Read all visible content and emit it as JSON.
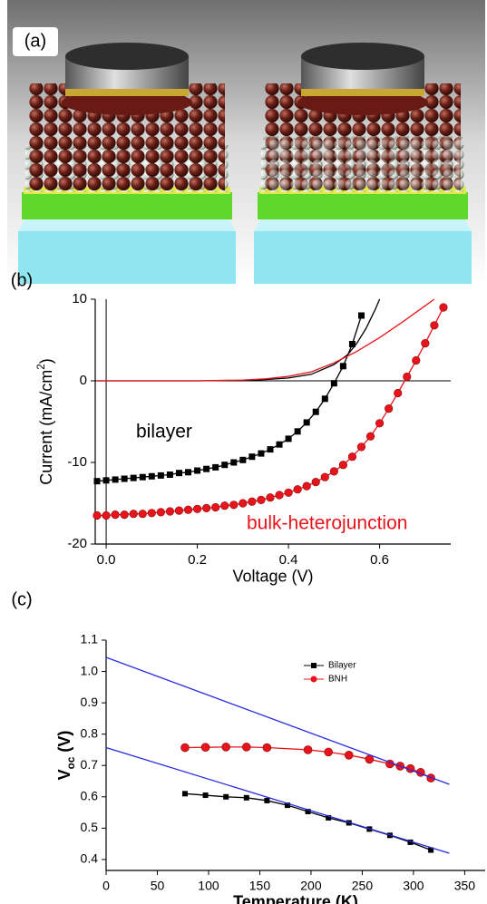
{
  "panel_labels": [
    "(a)",
    "(b)",
    "(c)"
  ],
  "chart_data": [
    {
      "type": "line",
      "x_label": "Voltage (V)",
      "y_label": [
        "Current (mA/cm",
        "2",
        ")"
      ],
      "xlim": [
        -0.024,
        0.756
      ],
      "ylim": [
        -20,
        10
      ],
      "xticks": [
        {
          "value": 0,
          "label": "0.0"
        },
        0.2,
        0.4,
        0.6
      ],
      "yticks": [
        -20,
        -10,
        0,
        10
      ],
      "annotations": [
        {
          "text": "bilayer",
          "color": "#000000"
        },
        {
          "text": "bulk-heterojunction",
          "color": "#e8141c"
        }
      ],
      "series": [
        {
          "color": "#000000",
          "marker": "square",
          "x": [
            -0.02,
            0,
            0.02,
            0.04,
            0.06,
            0.08,
            0.1,
            0.12,
            0.14,
            0.16,
            0.18,
            0.2,
            0.22,
            0.24,
            0.26,
            0.28,
            0.3,
            0.32,
            0.34,
            0.36,
            0.38,
            0.4,
            0.42,
            0.44,
            0.46,
            0.48,
            0.5,
            0.52,
            0.54,
            0.56
          ],
          "values": [
            -12.3,
            -12.2,
            -12.1,
            -12.0,
            -11.9,
            -11.8,
            -11.7,
            -11.6,
            -11.5,
            -11.3,
            -11.2,
            -11.0,
            -10.8,
            -10.6,
            -10.3,
            -10.0,
            -9.7,
            -9.3,
            -8.9,
            -8.4,
            -7.8,
            -7.1,
            -6.2,
            -5.1,
            -3.8,
            -2.2,
            -0.3,
            1.8,
            4.5,
            8.0
          ]
        },
        {
          "color": "#e8141c",
          "marker": "circle",
          "x": [
            -0.02,
            0,
            0.02,
            0.04,
            0.06,
            0.08,
            0.1,
            0.12,
            0.14,
            0.16,
            0.18,
            0.2,
            0.22,
            0.24,
            0.26,
            0.28,
            0.3,
            0.32,
            0.34,
            0.36,
            0.38,
            0.4,
            0.42,
            0.44,
            0.46,
            0.48,
            0.5,
            0.52,
            0.54,
            0.56,
            0.58,
            0.6,
            0.62,
            0.64,
            0.66,
            0.68,
            0.7,
            0.72,
            0.74
          ],
          "values": [
            -16.5,
            -16.5,
            -16.4,
            -16.4,
            -16.3,
            -16.3,
            -16.2,
            -16.1,
            -16.0,
            -15.9,
            -15.8,
            -15.7,
            -15.6,
            -15.5,
            -15.3,
            -15.2,
            -15.0,
            -14.8,
            -14.6,
            -14.3,
            -14.0,
            -13.7,
            -13.3,
            -12.9,
            -12.4,
            -11.8,
            -11.1,
            -10.3,
            -9.3,
            -8.1,
            -6.8,
            -5.2,
            -3.4,
            -1.5,
            0.5,
            2.5,
            4.6,
            6.8,
            9.0
          ]
        },
        {
          "color": "#000000",
          "x": [
            -0.02,
            0.2,
            0.3,
            0.35,
            0.4,
            0.45,
            0.5,
            0.53,
            0.55,
            0.57,
            0.59,
            0.6
          ],
          "values": [
            0,
            0,
            0.05,
            0.15,
            0.35,
            0.8,
            2.0,
            3.2,
            4.6,
            6.4,
            8.7,
            10
          ]
        },
        {
          "color": "#e8141c",
          "x": [
            -0.02,
            0.2,
            0.3,
            0.35,
            0.4,
            0.45,
            0.5,
            0.55,
            0.6,
            0.65,
            0.7,
            0.72
          ],
          "values": [
            0,
            0,
            0.1,
            0.25,
            0.55,
            1.1,
            2.2,
            3.6,
            5.3,
            7.2,
            9.2,
            10
          ]
        }
      ]
    },
    {
      "type": "line",
      "x_label": "Temperature (K)",
      "y_label": [
        "V",
        "oc",
        " (V)"
      ],
      "xlim": [
        0,
        370
      ],
      "ylim": [
        0.365,
        1.1
      ],
      "xticks": [
        0,
        50,
        100,
        150,
        200,
        250,
        300,
        350
      ],
      "yticks": [
        0.4,
        0.5,
        0.6,
        0.7,
        0.8,
        0.9,
        {
          "value": 1,
          "label": "1.0"
        },
        1.1
      ],
      "legend": "top-right",
      "series": [
        {
          "name": "Bilayer",
          "color": "#000000",
          "marker": "square",
          "x": [
            77,
            97,
            117,
            137,
            157,
            177,
            197,
            217,
            237,
            257,
            277,
            297,
            317
          ],
          "values": [
            0.61,
            0.605,
            0.6,
            0.597,
            0.588,
            0.573,
            0.553,
            0.533,
            0.517,
            0.497,
            0.477,
            0.455,
            0.43
          ]
        },
        {
          "name": "BNH",
          "color": "#e8141c",
          "marker": "circle",
          "x": [
            77,
            97,
            117,
            137,
            157,
            197,
            217,
            237,
            257,
            277,
            287,
            297,
            307,
            317
          ],
          "values": [
            0.757,
            0.758,
            0.759,
            0.759,
            0.757,
            0.75,
            0.743,
            0.733,
            0.72,
            0.705,
            0.698,
            0.69,
            0.678,
            0.66
          ]
        },
        {
          "color": "#2a2ae0",
          "x": [
            0,
            335
          ],
          "values": [
            1.045,
            0.64
          ]
        },
        {
          "color": "#2a2ae0",
          "x": [
            0,
            335
          ],
          "values": [
            0.757,
            0.42
          ]
        }
      ]
    }
  ]
}
